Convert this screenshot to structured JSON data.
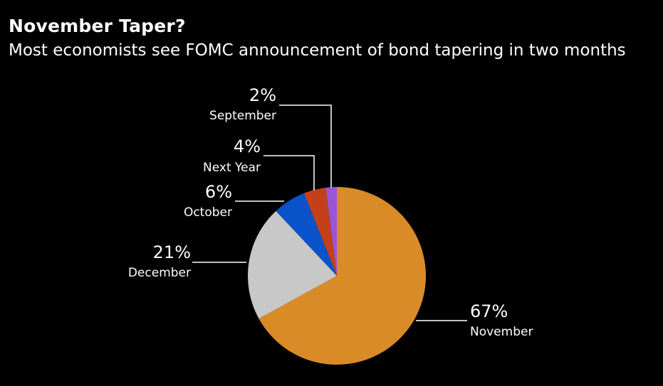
{
  "chart_data": {
    "type": "pie",
    "title": "November Taper?",
    "subtitle": "Most economists see FOMC announcement of bond tapering in two months",
    "slices": [
      {
        "label": "November",
        "value": 67,
        "value_label": "67%",
        "color": "#d98b28"
      },
      {
        "label": "December",
        "value": 21,
        "value_label": "21%",
        "color": "#c8c8c8"
      },
      {
        "label": "October",
        "value": 6,
        "value_label": "6%",
        "color": "#0a52c9"
      },
      {
        "label": "Next Year",
        "value": 4,
        "value_label": "4%",
        "color": "#c4401a"
      },
      {
        "label": "September",
        "value": 2,
        "value_label": "2%",
        "color": "#9a55d8"
      }
    ]
  }
}
